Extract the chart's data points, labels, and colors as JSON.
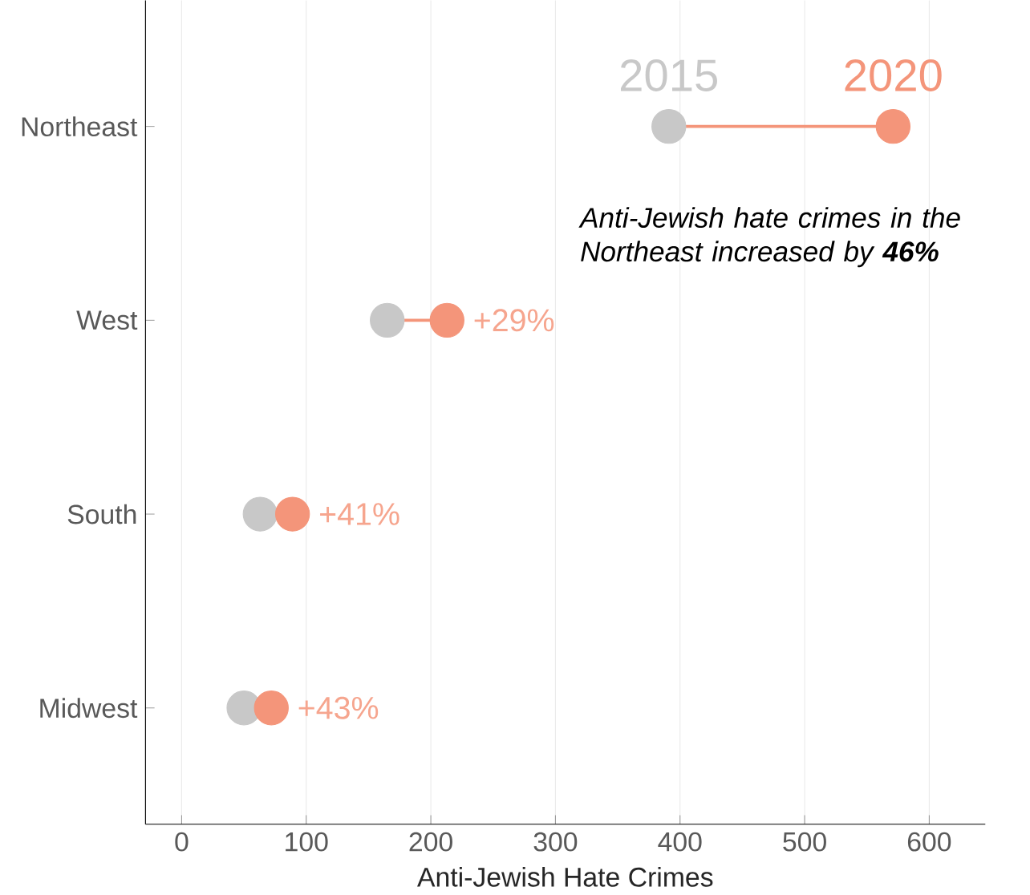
{
  "chart_data": {
    "type": "scatter",
    "orientation": "horizontal",
    "xlabel": "Anti-Jewish Hate Crimes",
    "categories": [
      "Northeast",
      "West",
      "South",
      "Midwest"
    ],
    "series": [
      {
        "name": "2015",
        "color": "#c8c8c8",
        "values": [
          391,
          165,
          63,
          50
        ]
      },
      {
        "name": "2020",
        "color": "#f4957a",
        "values": [
          571,
          213,
          89,
          72
        ]
      }
    ],
    "xlim": [
      -29,
      645
    ],
    "xticks": [
      0,
      100,
      200,
      300,
      400,
      500,
      600
    ],
    "grid": "x",
    "marker": "circle",
    "annotations": [
      "Anti-Jewish hate crimes in the Northeast increased by **46%**",
      {
        "text": "+29%",
        "x": 213,
        "y": "West"
      },
      {
        "text": "+41%",
        "x": 89,
        "y": "South"
      },
      {
        "text": "+43%",
        "x": 72,
        "y": "Midwest"
      }
    ]
  }
}
